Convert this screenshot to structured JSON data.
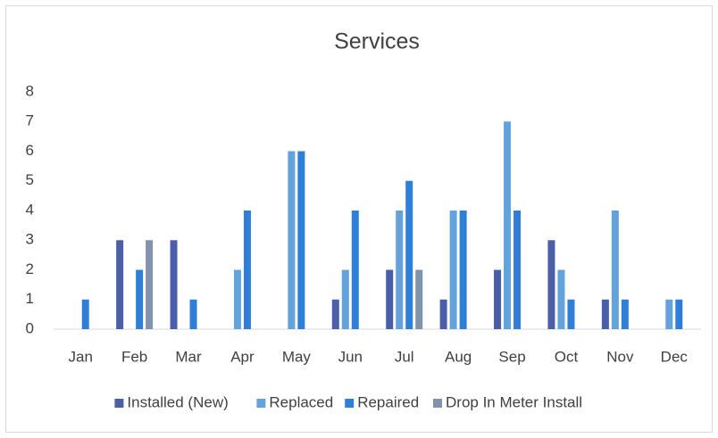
{
  "chart_data": {
    "type": "bar",
    "title": "Services",
    "categories": [
      "Jan",
      "Feb",
      "Mar",
      "Apr",
      "May",
      "Jun",
      "Jul",
      "Aug",
      "Sep",
      "Oct",
      "Nov",
      "Dec"
    ],
    "series": [
      {
        "name": "Installed (New)",
        "color": "#4a5fa8",
        "values": [
          0,
          3,
          3,
          0,
          0,
          1,
          2,
          1,
          2,
          3,
          1,
          0
        ]
      },
      {
        "name": "Replaced",
        "color": "#63a2db",
        "values": [
          0,
          0,
          0,
          2,
          6,
          2,
          4,
          4,
          7,
          2,
          4,
          1
        ]
      },
      {
        "name": "Repaired",
        "color": "#2f7fd8",
        "values": [
          1,
          2,
          1,
          4,
          6,
          4,
          5,
          4,
          4,
          1,
          1,
          1
        ]
      },
      {
        "name": "Drop In Meter Install",
        "color": "#8192ad",
        "values": [
          0,
          3,
          0,
          0,
          0,
          0,
          2,
          0,
          0,
          0,
          0,
          0
        ]
      }
    ],
    "ylim": [
      0,
      8
    ],
    "yticks": [
      0,
      1,
      2,
      3,
      4,
      5,
      6,
      7,
      8
    ],
    "grid": false,
    "legend": "bottom"
  }
}
